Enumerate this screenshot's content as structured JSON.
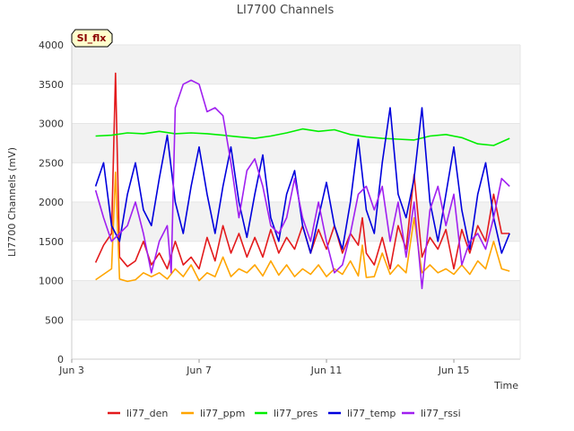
{
  "chart_data": {
    "type": "line",
    "title": "LI7700 Channels",
    "badge": "SI_flx",
    "xlabel": "Time",
    "ylabel": "LI7700 Channels (mV)",
    "xlim": [
      "2023-06-03",
      "2023-06-17T02:00"
    ],
    "ylim": [
      0,
      4000
    ],
    "yticks": [
      0,
      500,
      1000,
      1500,
      2000,
      2500,
      3000,
      3500,
      4000
    ],
    "xticks": [
      {
        "date": "2023-06-03",
        "label": "Jun 3"
      },
      {
        "date": "2023-06-07",
        "label": "Jun 7"
      },
      {
        "date": "2023-06-11",
        "label": "Jun 11"
      },
      {
        "date": "2023-06-15",
        "label": "Jun 15"
      }
    ],
    "grid": "horizontal bands",
    "legend_position": "bottom",
    "series": [
      {
        "name": "li77_den",
        "color": "#e31a1c",
        "x": [
          "2023-06-03T18:00",
          "2023-06-04T00:00",
          "2023-06-04T06:00",
          "2023-06-04T09:00",
          "2023-06-04T12:00",
          "2023-06-04T18:00",
          "2023-06-05T00:00",
          "2023-06-05T06:00",
          "2023-06-05T12:00",
          "2023-06-05T18:00",
          "2023-06-06T00:00",
          "2023-06-06T06:00",
          "2023-06-06T12:00",
          "2023-06-06T18:00",
          "2023-06-07T00:00",
          "2023-06-07T06:00",
          "2023-06-07T12:00",
          "2023-06-07T18:00",
          "2023-06-08T00:00",
          "2023-06-08T06:00",
          "2023-06-08T12:00",
          "2023-06-08T18:00",
          "2023-06-09T00:00",
          "2023-06-09T06:00",
          "2023-06-09T12:00",
          "2023-06-09T18:00",
          "2023-06-10T00:00",
          "2023-06-10T06:00",
          "2023-06-10T12:00",
          "2023-06-10T18:00",
          "2023-06-11T00:00",
          "2023-06-11T06:00",
          "2023-06-11T12:00",
          "2023-06-11T18:00",
          "2023-06-12T00:00",
          "2023-06-12T03:00",
          "2023-06-12T06:00",
          "2023-06-12T12:00",
          "2023-06-12T18:00",
          "2023-06-13T00:00",
          "2023-06-13T06:00",
          "2023-06-13T12:00",
          "2023-06-13T18:00",
          "2023-06-14T00:00",
          "2023-06-14T06:00",
          "2023-06-14T12:00",
          "2023-06-14T18:00",
          "2023-06-15T00:00",
          "2023-06-15T06:00",
          "2023-06-15T12:00",
          "2023-06-15T18:00",
          "2023-06-16T00:00",
          "2023-06-16T06:00",
          "2023-06-16T12:00",
          "2023-06-16T18:00"
        ],
        "y": [
          1230,
          1450,
          1600,
          3640,
          1300,
          1180,
          1250,
          1500,
          1200,
          1350,
          1150,
          1500,
          1200,
          1300,
          1150,
          1550,
          1250,
          1700,
          1350,
          1600,
          1300,
          1550,
          1300,
          1650,
          1350,
          1550,
          1400,
          1700,
          1350,
          1650,
          1400,
          1700,
          1350,
          1600,
          1450,
          1800,
          1350,
          1200,
          1550,
          1150,
          1700,
          1400,
          2350,
          1300,
          1550,
          1400,
          1650,
          1150,
          1650,
          1350,
          1700,
          1500,
          2100,
          1600,
          1600
        ]
      },
      {
        "name": "li77_ppm",
        "color": "#ffa500",
        "x": [
          "2023-06-03T18:00",
          "2023-06-04T00:00",
          "2023-06-04T06:00",
          "2023-06-04T09:00",
          "2023-06-04T12:00",
          "2023-06-04T18:00",
          "2023-06-05T00:00",
          "2023-06-05T06:00",
          "2023-06-05T12:00",
          "2023-06-05T18:00",
          "2023-06-06T00:00",
          "2023-06-06T06:00",
          "2023-06-06T12:00",
          "2023-06-06T18:00",
          "2023-06-07T00:00",
          "2023-06-07T06:00",
          "2023-06-07T12:00",
          "2023-06-07T18:00",
          "2023-06-08T00:00",
          "2023-06-08T06:00",
          "2023-06-08T12:00",
          "2023-06-08T18:00",
          "2023-06-09T00:00",
          "2023-06-09T06:00",
          "2023-06-09T12:00",
          "2023-06-09T18:00",
          "2023-06-10T00:00",
          "2023-06-10T06:00",
          "2023-06-10T12:00",
          "2023-06-10T18:00",
          "2023-06-11T00:00",
          "2023-06-11T06:00",
          "2023-06-11T12:00",
          "2023-06-11T18:00",
          "2023-06-12T00:00",
          "2023-06-12T03:00",
          "2023-06-12T06:00",
          "2023-06-12T12:00",
          "2023-06-12T18:00",
          "2023-06-13T00:00",
          "2023-06-13T06:00",
          "2023-06-13T12:00",
          "2023-06-13T18:00",
          "2023-06-14T00:00",
          "2023-06-14T06:00",
          "2023-06-14T12:00",
          "2023-06-14T18:00",
          "2023-06-15T00:00",
          "2023-06-15T06:00",
          "2023-06-15T12:00",
          "2023-06-15T18:00",
          "2023-06-16T00:00",
          "2023-06-16T06:00",
          "2023-06-16T12:00",
          "2023-06-16T18:00"
        ],
        "y": [
          1010,
          1080,
          1150,
          2380,
          1020,
          990,
          1010,
          1100,
          1050,
          1100,
          1020,
          1150,
          1050,
          1200,
          1000,
          1100,
          1050,
          1300,
          1050,
          1150,
          1100,
          1200,
          1060,
          1250,
          1070,
          1200,
          1050,
          1150,
          1080,
          1200,
          1050,
          1150,
          1080,
          1250,
          1060,
          1450,
          1040,
          1050,
          1350,
          1080,
          1200,
          1100,
          1800,
          1100,
          1200,
          1100,
          1150,
          1080,
          1200,
          1080,
          1250,
          1150,
          1500,
          1150,
          1120
        ]
      },
      {
        "name": "li77_pres",
        "color": "#00ee00",
        "x": [
          "2023-06-03T18:00",
          "2023-06-04T06:00",
          "2023-06-04T18:00",
          "2023-06-05T06:00",
          "2023-06-05T18:00",
          "2023-06-06T06:00",
          "2023-06-06T18:00",
          "2023-06-07T06:00",
          "2023-06-07T18:00",
          "2023-06-08T06:00",
          "2023-06-08T18:00",
          "2023-06-09T06:00",
          "2023-06-09T18:00",
          "2023-06-10T06:00",
          "2023-06-10T18:00",
          "2023-06-11T06:00",
          "2023-06-11T18:00",
          "2023-06-12T06:00",
          "2023-06-12T18:00",
          "2023-06-13T06:00",
          "2023-06-13T18:00",
          "2023-06-14T06:00",
          "2023-06-14T18:00",
          "2023-06-15T06:00",
          "2023-06-15T18:00",
          "2023-06-16T06:00",
          "2023-06-16T18:00"
        ],
        "y": [
          2840,
          2850,
          2880,
          2870,
          2900,
          2870,
          2880,
          2870,
          2850,
          2830,
          2810,
          2840,
          2880,
          2930,
          2900,
          2920,
          2860,
          2830,
          2810,
          2800,
          2790,
          2840,
          2860,
          2820,
          2740,
          2720,
          2810
        ]
      },
      {
        "name": "li77_temp",
        "color": "#0000dd",
        "x": [
          "2023-06-03T18:00",
          "2023-06-04T00:00",
          "2023-06-04T06:00",
          "2023-06-04T12:00",
          "2023-06-04T18:00",
          "2023-06-05T00:00",
          "2023-06-05T06:00",
          "2023-06-05T12:00",
          "2023-06-05T18:00",
          "2023-06-06T00:00",
          "2023-06-06T06:00",
          "2023-06-06T12:00",
          "2023-06-06T18:00",
          "2023-06-07T00:00",
          "2023-06-07T06:00",
          "2023-06-07T12:00",
          "2023-06-07T18:00",
          "2023-06-08T00:00",
          "2023-06-08T06:00",
          "2023-06-08T12:00",
          "2023-06-08T18:00",
          "2023-06-09T00:00",
          "2023-06-09T06:00",
          "2023-06-09T12:00",
          "2023-06-09T18:00",
          "2023-06-10T00:00",
          "2023-06-10T06:00",
          "2023-06-10T12:00",
          "2023-06-10T18:00",
          "2023-06-11T00:00",
          "2023-06-11T06:00",
          "2023-06-11T12:00",
          "2023-06-11T18:00",
          "2023-06-12T00:00",
          "2023-06-12T06:00",
          "2023-06-12T12:00",
          "2023-06-12T18:00",
          "2023-06-13T00:00",
          "2023-06-13T06:00",
          "2023-06-13T12:00",
          "2023-06-13T18:00",
          "2023-06-14T00:00",
          "2023-06-14T06:00",
          "2023-06-14T12:00",
          "2023-06-14T18:00",
          "2023-06-15T00:00",
          "2023-06-15T06:00",
          "2023-06-15T12:00",
          "2023-06-15T18:00",
          "2023-06-16T00:00",
          "2023-06-16T06:00",
          "2023-06-16T12:00",
          "2023-06-16T18:00"
        ],
        "y": [
          2200,
          2500,
          1700,
          1500,
          2100,
          2500,
          1900,
          1700,
          2300,
          2850,
          2000,
          1600,
          2200,
          2700,
          2100,
          1600,
          2200,
          2700,
          2000,
          1550,
          2100,
          2600,
          1800,
          1500,
          2100,
          2400,
          1700,
          1350,
          1800,
          2250,
          1700,
          1400,
          2000,
          2800,
          1900,
          1600,
          2500,
          3200,
          2100,
          1800,
          2300,
          3200,
          2000,
          1500,
          2100,
          2700,
          1900,
          1400,
          2100,
          2500,
          1800,
          1350,
          1600
        ]
      },
      {
        "name": "li77_rssi",
        "color": "#a020f0",
        "x": [
          "2023-06-03T18:00",
          "2023-06-04T00:00",
          "2023-06-04T06:00",
          "2023-06-04T12:00",
          "2023-06-04T18:00",
          "2023-06-05T00:00",
          "2023-06-05T06:00",
          "2023-06-05T12:00",
          "2023-06-05T18:00",
          "2023-06-06T00:00",
          "2023-06-06T03:00",
          "2023-06-06T06:00",
          "2023-06-06T12:00",
          "2023-06-06T18:00",
          "2023-06-07T00:00",
          "2023-06-07T06:00",
          "2023-06-07T12:00",
          "2023-06-07T18:00",
          "2023-06-08T00:00",
          "2023-06-08T06:00",
          "2023-06-08T12:00",
          "2023-06-08T18:00",
          "2023-06-09T00:00",
          "2023-06-09T06:00",
          "2023-06-09T12:00",
          "2023-06-09T18:00",
          "2023-06-10T00:00",
          "2023-06-10T06:00",
          "2023-06-10T12:00",
          "2023-06-10T18:00",
          "2023-06-11T00:00",
          "2023-06-11T06:00",
          "2023-06-11T12:00",
          "2023-06-11T18:00",
          "2023-06-12T00:00",
          "2023-06-12T06:00",
          "2023-06-12T12:00",
          "2023-06-12T18:00",
          "2023-06-13T00:00",
          "2023-06-13T06:00",
          "2023-06-13T12:00",
          "2023-06-13T18:00",
          "2023-06-14T00:00",
          "2023-06-14T06:00",
          "2023-06-14T12:00",
          "2023-06-14T18:00",
          "2023-06-15T00:00",
          "2023-06-15T06:00",
          "2023-06-15T12:00",
          "2023-06-15T18:00",
          "2023-06-16T00:00",
          "2023-06-16T06:00",
          "2023-06-16T12:00",
          "2023-06-16T18:00"
        ],
        "y": [
          2150,
          1800,
          1500,
          1600,
          1700,
          2000,
          1600,
          1100,
          1500,
          1700,
          1100,
          3200,
          3500,
          3550,
          3500,
          3150,
          3200,
          3100,
          2500,
          1800,
          2400,
          2550,
          2200,
          1700,
          1600,
          1800,
          2300,
          1800,
          1500,
          2000,
          1500,
          1100,
          1200,
          1600,
          2100,
          2200,
          1900,
          2200,
          1500,
          2000,
          1300,
          2000,
          900,
          1900,
          2200,
          1700,
          2100,
          1200,
          1500,
          1600,
          1400,
          1800,
          2300,
          2200
        ]
      }
    ]
  }
}
